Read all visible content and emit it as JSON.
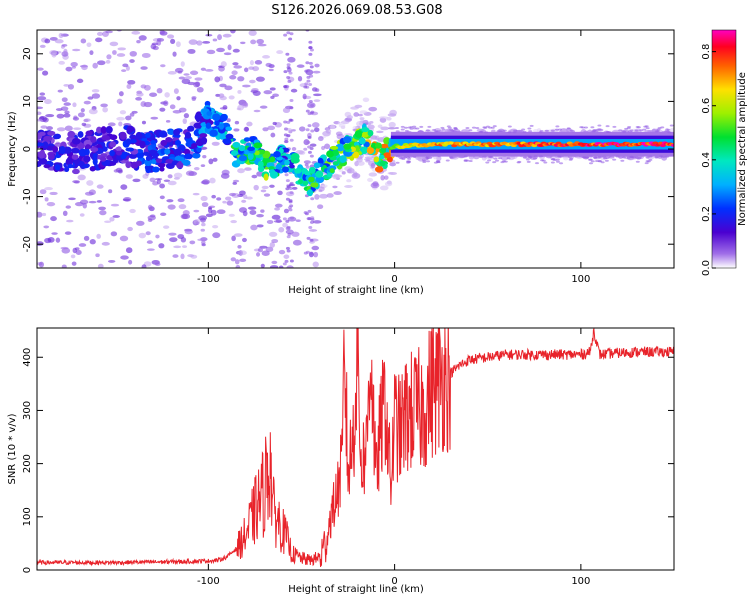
{
  "title": "S126.2026.069.08.53.G08",
  "chart_data": [
    {
      "type": "heatmap",
      "xlabel": "Height of straight line (km)",
      "ylabel": "Frequency (Hz)",
      "xlim": [
        -192,
        150
      ],
      "ylim": [
        -25,
        25
      ],
      "xticks": [
        "-100",
        "0",
        "100"
      ],
      "xtick_values": [
        -100,
        0,
        100
      ],
      "yticks": [
        "-20",
        "-10",
        "0",
        "10",
        "20"
      ],
      "ytick_values": [
        -20,
        -10,
        0,
        10,
        20
      ],
      "colorbar": {
        "label": "Normalized spectral amplitude",
        "range": [
          0,
          0.88
        ],
        "ticks": [
          "0.0",
          "0.2",
          "0.4",
          "0.6",
          "0.8"
        ],
        "tick_values": [
          0.0,
          0.2,
          0.4,
          0.6,
          0.8
        ]
      },
      "ridge": [
        {
          "x": -190,
          "f": 0,
          "a": 0.15
        },
        {
          "x": -170,
          "f": -1,
          "a": 0.15
        },
        {
          "x": -150,
          "f": 1,
          "a": 0.15
        },
        {
          "x": -130,
          "f": -0.5,
          "a": 0.2
        },
        {
          "x": -110,
          "f": 0.5,
          "a": 0.2
        },
        {
          "x": -100,
          "f": 6,
          "a": 0.25
        },
        {
          "x": -90,
          "f": 4,
          "a": 0.3
        },
        {
          "x": -85,
          "f": -1,
          "a": 0.4
        },
        {
          "x": -75,
          "f": 0,
          "a": 0.4
        },
        {
          "x": -68,
          "f": -4,
          "a": 0.45
        },
        {
          "x": -60,
          "f": -2,
          "a": 0.3
        },
        {
          "x": -50,
          "f": -5,
          "a": 0.35
        },
        {
          "x": -45,
          "f": -7,
          "a": 0.4
        },
        {
          "x": -35,
          "f": -3,
          "a": 0.4
        },
        {
          "x": -25,
          "f": 0,
          "a": 0.45
        },
        {
          "x": -15,
          "f": 2.5,
          "a": 0.5
        },
        {
          "x": -8,
          "f": -2,
          "a": 0.55
        },
        {
          "x": 0,
          "f": 0.5,
          "a": 0.6
        },
        {
          "x": 20,
          "f": 1,
          "a": 0.7
        },
        {
          "x": 60,
          "f": 1,
          "a": 0.75
        },
        {
          "x": 100,
          "f": 1,
          "a": 0.8
        },
        {
          "x": 150,
          "f": 1,
          "a": 0.85
        }
      ]
    },
    {
      "type": "line",
      "xlabel": "Height of straight line (km)",
      "ylabel": "SNR (10 * v/v)",
      "xlim": [
        -192,
        150
      ],
      "ylim": [
        0,
        455
      ],
      "xticks": [
        "-100",
        "0",
        "100"
      ],
      "xtick_values": [
        -100,
        0,
        100
      ],
      "yticks": [
        "0",
        "100",
        "200",
        "300",
        "400"
      ],
      "ytick_values": [
        0,
        100,
        200,
        300,
        400
      ],
      "color": "#e8232a",
      "series": [
        {
          "name": "SNR",
          "x": [
            -192,
            -170,
            -150,
            -130,
            -110,
            -95,
            -90,
            -85,
            -80,
            -75,
            -70,
            -67,
            -65,
            -62,
            -58,
            -55,
            -50,
            -45,
            -40,
            -37,
            -35,
            -33,
            -30,
            -28,
            -27,
            -25,
            -22,
            -20,
            -18,
            -15,
            -13,
            -10,
            -8,
            -5,
            -2,
            0,
            3,
            6,
            10,
            15,
            20,
            25,
            30,
            35,
            40,
            50,
            60,
            80,
            100,
            105,
            107,
            110,
            120,
            130,
            140,
            150
          ],
          "y": [
            14,
            14,
            14,
            15,
            16,
            18,
            25,
            40,
            65,
            110,
            150,
            215,
            110,
            90,
            60,
            30,
            22,
            18,
            25,
            50,
            90,
            115,
            160,
            205,
            420,
            180,
            260,
            420,
            200,
            230,
            430,
            170,
            250,
            320,
            160,
            280,
            260,
            290,
            300,
            300,
            340,
            360,
            370,
            385,
            395,
            400,
            405,
            405,
            405,
            410,
            450,
            405,
            408,
            410,
            410,
            410
          ]
        }
      ]
    }
  ]
}
